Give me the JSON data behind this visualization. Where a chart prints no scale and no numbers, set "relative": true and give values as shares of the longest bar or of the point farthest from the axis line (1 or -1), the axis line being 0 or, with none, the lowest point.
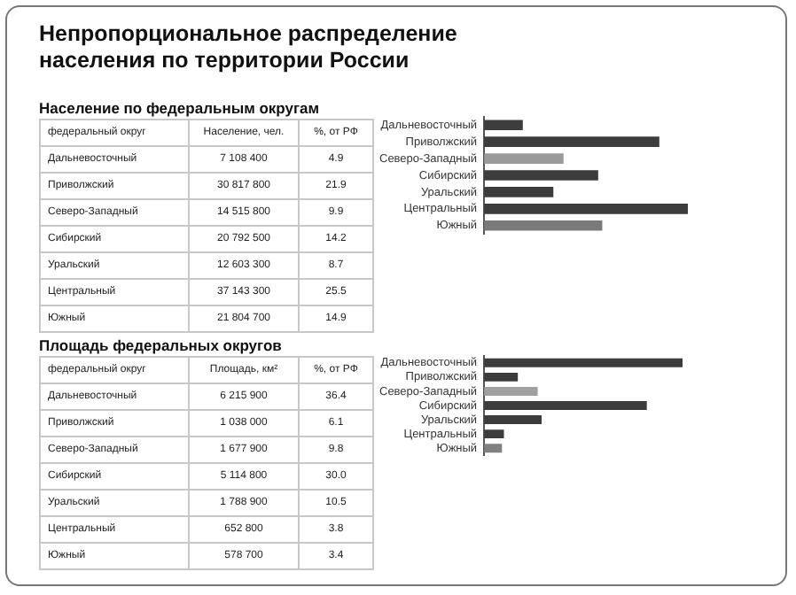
{
  "chart_data": [
    {
      "type": "other",
      "title": "Непропорциональное распределение населения по территории России",
      "subtitle": "Население по федеральным округам",
      "annotations": [
        "федеральный округ",
        "Население, чел.",
        "%, от РФ",
        "Дальневосточный",
        "7 108 400",
        "4.9",
        "Приволжский",
        "30 817 800",
        "21.9",
        "Северо-Западный",
        "14 515 800",
        "9.9",
        "Сибирский",
        "20 792 500",
        "14.2",
        "Уральский",
        "12 603 300",
        "8.7",
        "Центральный",
        "37 143 300",
        "25.5",
        "Южный",
        "21 804 700",
        "14.9"
      ]
    },
    {
      "type": "bar",
      "orientation": "horizontal",
      "relative": true,
      "categories": [
        "Дальневосточный",
        "Приволжский",
        "Северо-Западный",
        "Сибирский",
        "Уральский",
        "Центральный",
        "Южный"
      ],
      "values": [
        0.19,
        0.86,
        0.39,
        0.56,
        0.34,
        1,
        0.58
      ],
      "colors": [
        "#3c3c3c",
        "#3c3c3c",
        "#9a9a9a",
        "#3c3c3c",
        "#3c3c3c",
        "#3c3c3c",
        "#7a7a7a"
      ],
      "tick_labels": "y"
    },
    {
      "type": "other",
      "subtitle": "Площадь федеральных округов",
      "annotations": [
        "федеральный округ",
        "Площадь, км²",
        "%, от РФ",
        "Дальневосточный",
        "6 215 900",
        "36.4",
        "Приволжский",
        "1 038 000",
        "6.1",
        "Северо-Западный",
        "1 677 900",
        "9.8",
        "Сибирский",
        "5 114 800",
        "30.0",
        "Уральский",
        "1 788 900",
        "10.5",
        "Центральный",
        "652 800",
        "3.8",
        "Южный",
        "578 700",
        "3.4"
      ]
    },
    {
      "type": "bar",
      "orientation": "horizontal",
      "relative": true,
      "categories": [
        "Дальневосточный",
        "Приволжский",
        "Северо-Западный",
        "Сибирский",
        "Уральский",
        "Центральный",
        "Южный"
      ],
      "values": [
        1,
        0.17,
        0.27,
        0.82,
        0.29,
        0.1,
        0.09
      ],
      "colors": [
        "#3c3c3c",
        "#3c3c3c",
        "#a0a0a0",
        "#3c3c3c",
        "#3c3c3c",
        "#3c3c3c",
        "#808080"
      ],
      "tick_labels": "y"
    }
  ]
}
